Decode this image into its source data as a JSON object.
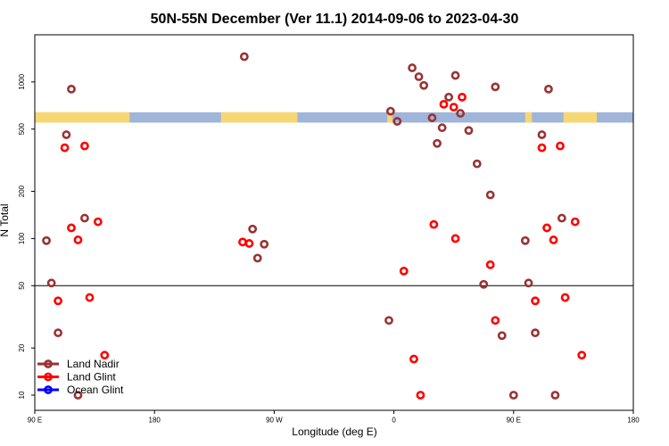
{
  "chart_data": {
    "type": "scatter",
    "title": "50N-55N December (Ver 11.1)   2014-09-06 to 2023-04-30",
    "xlabel": "Longitude (deg E)",
    "ylabel": "N Total",
    "yscale": "log",
    "xlim": [
      0,
      360
    ],
    "ylim": [
      8,
      2000
    ],
    "x_ticks": [
      {
        "value": 0,
        "label": "90 E"
      },
      {
        "value": 72,
        "label": "180"
      },
      {
        "value": 144,
        "label": "90 W"
      },
      {
        "value": 216,
        "label": "0"
      },
      {
        "value": 288,
        "label": "90 E"
      },
      {
        "value": 360,
        "label": "180"
      }
    ],
    "y_ticks": [
      {
        "value": 10,
        "label": "10"
      },
      {
        "value": 20,
        "label": "20"
      },
      {
        "value": 50,
        "label": "50"
      },
      {
        "value": 100,
        "label": "100"
      },
      {
        "value": 200,
        "label": "200"
      },
      {
        "value": 500,
        "label": "500"
      },
      {
        "value": 1000,
        "label": "1000"
      }
    ],
    "reference_line": 50,
    "surface_band": {
      "y_range": [
        550,
        640
      ],
      "land_color": "#f7d774",
      "ocean_color": "#9fb5d9",
      "land_segments": [
        [
          0,
          57
        ],
        [
          112,
          158
        ],
        [
          212,
          215
        ],
        [
          295,
          299
        ],
        [
          318,
          338
        ]
      ]
    },
    "series": [
      {
        "name": "Land Nadir",
        "color": "#993333",
        "points": [
          [
            7,
            97
          ],
          [
            10,
            52
          ],
          [
            14,
            25
          ],
          [
            19,
            460
          ],
          [
            22,
            900
          ],
          [
            26,
            10
          ],
          [
            30,
            135
          ],
          [
            126,
            1450
          ],
          [
            131,
            115
          ],
          [
            134,
            75
          ],
          [
            138,
            92
          ],
          [
            213,
            30
          ],
          [
            214,
            650
          ],
          [
            218,
            560
          ],
          [
            227,
            1230
          ],
          [
            231,
            1080
          ],
          [
            234,
            950
          ],
          [
            239,
            590
          ],
          [
            242,
            405
          ],
          [
            245,
            510
          ],
          [
            249,
            800
          ],
          [
            253,
            1100
          ],
          [
            256,
            630
          ],
          [
            261,
            490
          ],
          [
            266,
            300
          ],
          [
            270,
            51
          ],
          [
            274,
            190
          ],
          [
            277,
            930
          ],
          [
            281,
            24
          ],
          [
            288,
            10
          ],
          [
            295,
            97
          ],
          [
            297,
            52
          ],
          [
            301,
            25
          ],
          [
            305,
            460
          ],
          [
            309,
            900
          ],
          [
            313,
            10
          ],
          [
            317,
            135
          ]
        ]
      },
      {
        "name": "Land Glint",
        "color": "#ff0000",
        "points": [
          [
            14,
            40
          ],
          [
            18,
            380
          ],
          [
            22,
            117
          ],
          [
            26,
            98
          ],
          [
            30,
            390
          ],
          [
            33,
            42
          ],
          [
            38,
            128
          ],
          [
            42,
            18
          ],
          [
            125,
            95
          ],
          [
            129,
            93
          ],
          [
            222,
            62
          ],
          [
            228,
            17
          ],
          [
            232,
            10
          ],
          [
            240,
            123
          ],
          [
            246,
            720
          ],
          [
            252,
            690
          ],
          [
            253,
            100
          ],
          [
            257,
            800
          ],
          [
            274,
            68
          ],
          [
            277,
            30
          ],
          [
            301,
            40
          ],
          [
            305,
            380
          ],
          [
            308,
            117
          ],
          [
            312,
            98
          ],
          [
            316,
            390
          ],
          [
            319,
            42
          ],
          [
            325,
            128
          ],
          [
            329,
            18
          ]
        ]
      },
      {
        "name": "Ocean Glint",
        "color": "#0000ff",
        "points": []
      }
    ]
  }
}
